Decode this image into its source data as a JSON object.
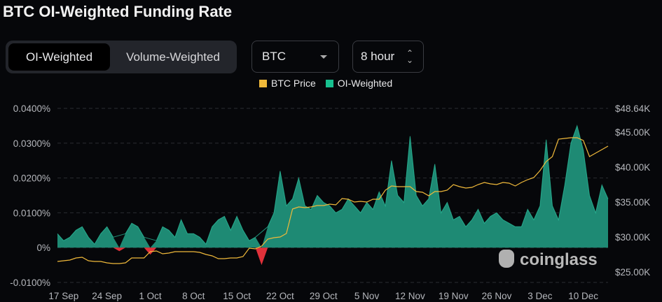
{
  "title": "BTC OI-Weighted Funding Rate",
  "toggle": {
    "options": [
      "OI-Weighted",
      "Volume-Weighted"
    ],
    "selected": "OI-Weighted"
  },
  "symbol_select": {
    "value": "BTC"
  },
  "interval_select": {
    "value": "8 hour"
  },
  "watermark": "coinglass",
  "colors": {
    "price": "#f0b93a",
    "funding_pos": "#1e8a74",
    "funding_line": "#2ec9a5",
    "funding_neg": "#e0313a",
    "background": "#06070a"
  },
  "chart_data": {
    "type": "area",
    "title": "BTC OI-Weighted Funding Rate",
    "legend": [
      {
        "name": "BTC Price",
        "color": "#f0b93a"
      },
      {
        "name": "OI-Weighted",
        "color": "#17c08f"
      }
    ],
    "legend_position": "top-center",
    "x_start": "16 Sep",
    "x_step": "1 day",
    "x_ticks": [
      "17 Sep",
      "24 Sep",
      "1 Oct",
      "8 Oct",
      "15 Oct",
      "22 Oct",
      "29 Oct",
      "5 Nov",
      "12 Nov",
      "19 Nov",
      "26 Nov",
      "3 Dec",
      "10 Dec"
    ],
    "x_tick_index": [
      1,
      8,
      15,
      22,
      29,
      36,
      43,
      50,
      57,
      64,
      71,
      78,
      85
    ],
    "y_left": {
      "ticks": [
        "0.0400%",
        "0.0300%",
        "0.0200%",
        "0.0100%",
        "0%",
        "-0.0100%"
      ],
      "values": [
        0.04,
        0.03,
        0.02,
        0.01,
        0,
        -0.01
      ],
      "range": [
        -0.01,
        0.04
      ]
    },
    "y_right": {
      "ticks": [
        "$48.64K",
        "$45.00K",
        "$40.00K",
        "$35.00K",
        "$30.00K",
        "$25.00K"
      ],
      "values": [
        48.64,
        45,
        40,
        35,
        30,
        25
      ],
      "range": [
        25,
        48.64
      ]
    },
    "series": [
      {
        "name": "OI-Weighted",
        "axis": "left",
        "unit": "%",
        "values": [
          0.004,
          0.002,
          0.003,
          0.005,
          0.006,
          0.003,
          0.001,
          0.004,
          0.006,
          0.003,
          -0.001,
          0.004,
          0.007,
          0.006,
          0.003,
          -0.002,
          0.002,
          0.006,
          0.005,
          0.003,
          0.008,
          0.004,
          0.004,
          0.003,
          0.001,
          0.006,
          0.008,
          0.009,
          0.005,
          0.009,
          0.005,
          0.002,
          0.003,
          -0.005,
          0.006,
          0.01,
          0.022,
          0.012,
          0.014,
          0.02,
          0.012,
          0.011,
          0.015,
          0.013,
          0.012,
          0.01,
          0.011,
          0.014,
          0.012,
          0.01,
          0.013,
          0.011,
          0.016,
          0.012,
          0.025,
          0.015,
          0.013,
          0.032,
          0.015,
          0.012,
          0.014,
          0.024,
          0.01,
          0.013,
          0.008,
          0.009,
          0.006,
          0.008,
          0.011,
          0.007,
          0.009,
          0.01,
          0.008,
          0.007,
          0.006,
          0.006,
          0.011,
          0.008,
          0.012,
          0.031,
          0.012,
          0.008,
          0.018,
          0.03,
          0.035,
          0.028,
          0.015,
          0.01,
          0.018,
          0.014
        ]
      },
      {
        "name": "BTC Price",
        "axis": "right",
        "unit": "$K",
        "values": [
          26.5,
          26.6,
          26.7,
          27.0,
          27.1,
          26.6,
          26.5,
          26.5,
          26.3,
          26.2,
          26.2,
          26.3,
          27.0,
          27.0,
          27.0,
          27.9,
          28.0,
          27.6,
          27.7,
          27.9,
          27.9,
          27.9,
          27.9,
          27.8,
          27.5,
          27.3,
          26.9,
          26.9,
          27.0,
          27.0,
          27.2,
          28.4,
          28.3,
          28.7,
          29.7,
          29.9,
          30.0,
          30.5,
          34.0,
          34.3,
          34.2,
          34.3,
          34.5,
          34.5,
          34.7,
          34.6,
          35.5,
          35.4,
          35.0,
          35.1,
          35.0,
          35.4,
          35.4,
          36.7,
          37.3,
          37.2,
          37.2,
          37.2,
          36.5,
          36.4,
          35.9,
          36.5,
          36.5,
          36.7,
          37.5,
          37.2,
          37.0,
          37.1,
          37.5,
          37.8,
          37.6,
          37.5,
          37.8,
          37.7,
          37.3,
          37.8,
          38.2,
          38.5,
          39.5,
          40.8,
          41.5,
          44.0,
          44.1,
          44.2,
          44.2,
          43.8,
          41.5,
          42.0,
          42.5,
          43.0
        ]
      }
    ]
  }
}
